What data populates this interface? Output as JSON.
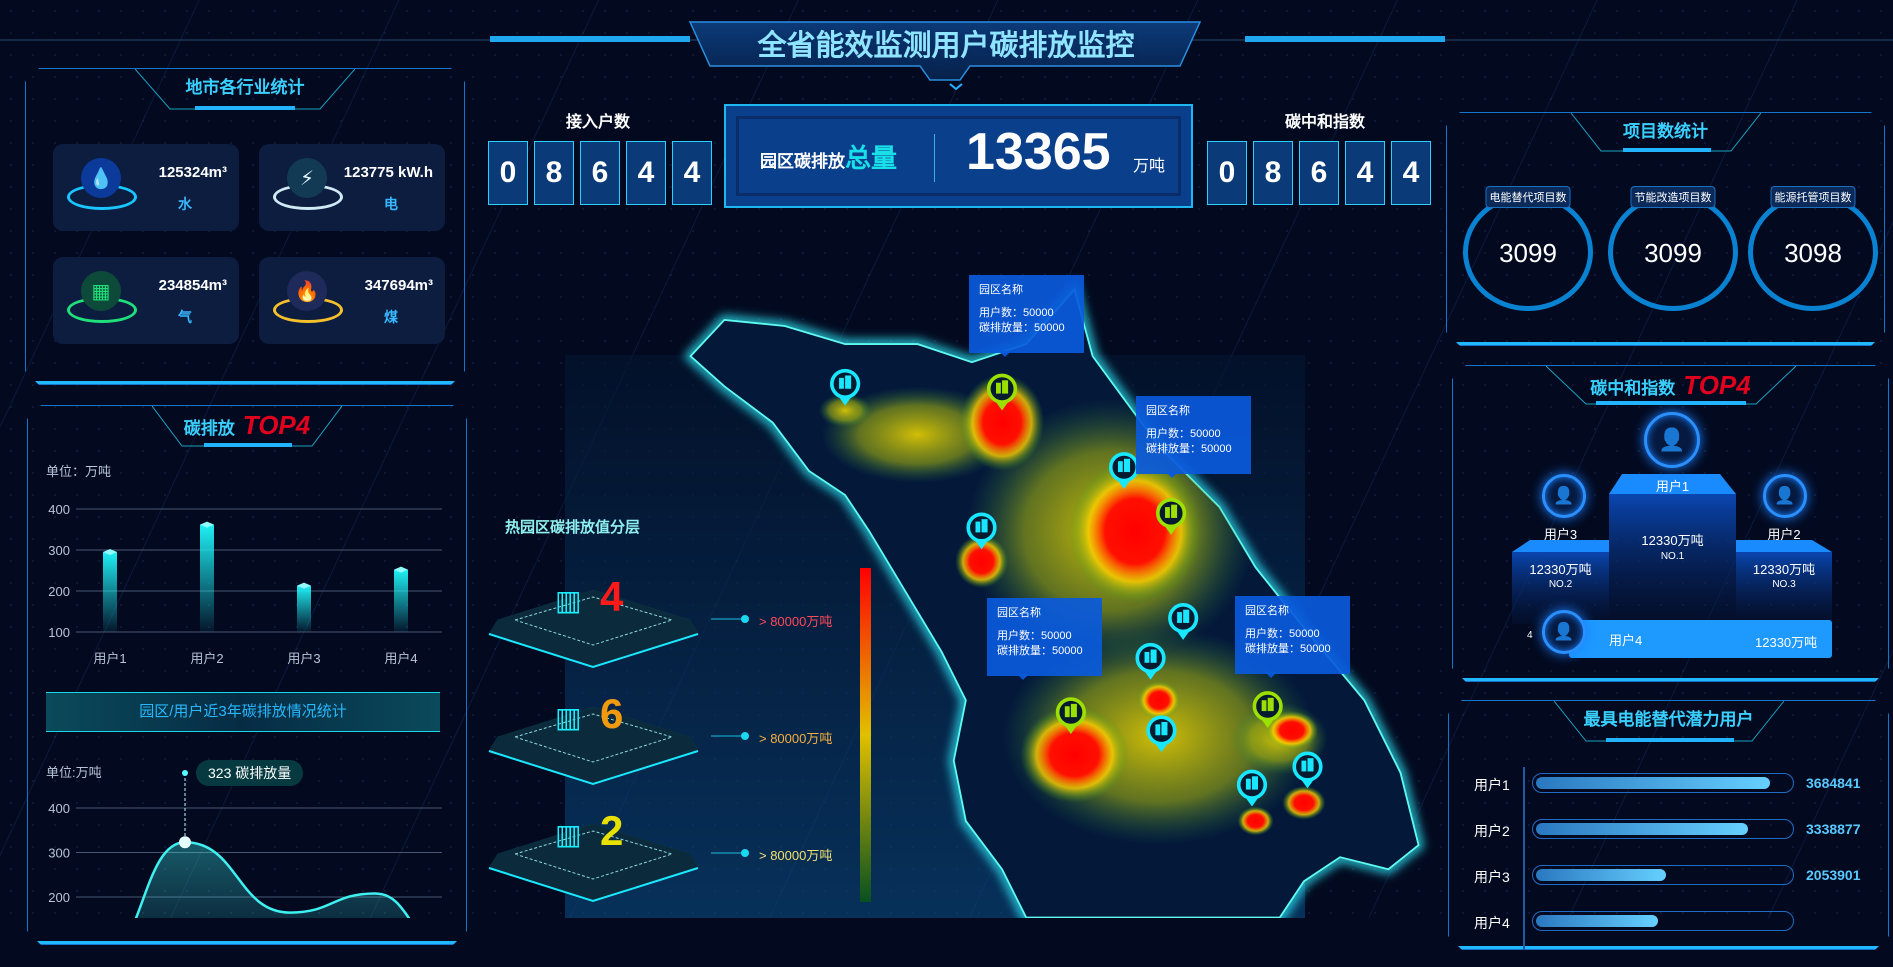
{
  "header": {
    "title": "全省能效监测用户碳排放监控"
  },
  "industry": {
    "title": "地市各行业统计",
    "cards": [
      {
        "value": "125324m³",
        "label": "水",
        "icon": "water-drop-icon",
        "color": "#19c6ff"
      },
      {
        "value": "123775 kW.h",
        "label": "电",
        "icon": "lightning-icon",
        "color": "#cfeaf5"
      },
      {
        "value": "234854m³",
        "label": "气",
        "icon": "gas-icon",
        "color": "#1fe07a"
      },
      {
        "value": "347694m³",
        "label": "煤",
        "icon": "flame-icon",
        "color": "#f5c02a"
      }
    ]
  },
  "emission_top": {
    "title": "碳排放",
    "badge": "TOP4",
    "unit": "单位：万吨"
  },
  "banner": {
    "label": "园区/用户近3年碳排放情况统计"
  },
  "trend": {
    "unit": "单位:万吨",
    "tooltip_value": "323",
    "tooltip_label": "碳排放量"
  },
  "chart_data": [
    {
      "type": "bar",
      "categories": [
        "用户1",
        "用户2",
        "用户3",
        "用户4"
      ],
      "values": [
        295,
        362,
        213,
        252
      ],
      "ylabel": "单位：万吨",
      "ylim": [
        100,
        400
      ],
      "yticks": [
        100,
        200,
        300,
        400
      ],
      "grid": true,
      "color": "#1ee6f0"
    },
    {
      "type": "area",
      "values": [
        60,
        323,
        165,
        208,
        90
      ],
      "ylabel": "单位:万吨",
      "ylim": [
        100,
        400
      ],
      "yticks": [
        200,
        300,
        400
      ],
      "grid": true,
      "highlight_index": 1,
      "color": "#3ff0f0"
    }
  ],
  "center": {
    "access_label": "接入户数",
    "access_digits": [
      "0",
      "8",
      "6",
      "4",
      "4"
    ],
    "total_label": "园区碳排放",
    "total_emphasis": "总量",
    "total_value": "13365",
    "total_unit": "万吨",
    "neutral_label": "碳中和指数",
    "neutral_digits": [
      "0",
      "8",
      "6",
      "4",
      "4"
    ]
  },
  "map": {
    "popups": [
      {
        "name": "园区名称",
        "users": "用户数：50000",
        "emission": "碳排放量：50000"
      },
      {
        "name": "园区名称",
        "users": "用户数：50000",
        "emission": "碳排放量：50000"
      },
      {
        "name": "园区名称",
        "users": "用户数：50000",
        "emission": "碳排放量：50000"
      },
      {
        "name": "园区名称",
        "users": "用户数：50000",
        "emission": "碳排放量：50000"
      }
    ],
    "legend_title": "热园区碳排放值分层",
    "layers": [
      {
        "count": "4",
        "text": "> 80000万吨",
        "color": "#ff1a1a",
        "text_color": "#ff4a5a"
      },
      {
        "count": "6",
        "text": "> 80000万吨",
        "color": "#f09a10",
        "text_color": "#f5b040"
      },
      {
        "count": "2",
        "text": "> 80000万吨",
        "color": "#e8e000",
        "text_color": "#f0e070"
      }
    ]
  },
  "projects": {
    "title": "项目数统计",
    "items": [
      {
        "label": "电能替代项目数",
        "value": "3099"
      },
      {
        "label": "节能改造项目数",
        "value": "3099"
      },
      {
        "label": "能源托管项目数",
        "value": "3098"
      }
    ]
  },
  "neutral_top": {
    "title": "碳中和指数",
    "badge": "TOP4",
    "podium": [
      {
        "name": "用户1",
        "value": "12330万吨",
        "rank": "NO.1"
      },
      {
        "name": "用户2",
        "value": "12330万吨",
        "rank": "NO.3"
      },
      {
        "name": "用户3",
        "value": "12330万吨",
        "rank": "NO.2"
      },
      {
        "name": "用户4",
        "value": "12330万吨",
        "rank": "4"
      }
    ]
  },
  "potential": {
    "title": "最具电能替代潜力用户",
    "max": 4000000,
    "rows": [
      {
        "label": "用户1",
        "value": "3684841",
        "fill": 0.92
      },
      {
        "label": "用户2",
        "value": "3338877",
        "fill": 0.835
      },
      {
        "label": "用户3",
        "value": "2053901",
        "fill": 0.51
      },
      {
        "label": "用户4",
        "fill": 0.48
      }
    ]
  }
}
